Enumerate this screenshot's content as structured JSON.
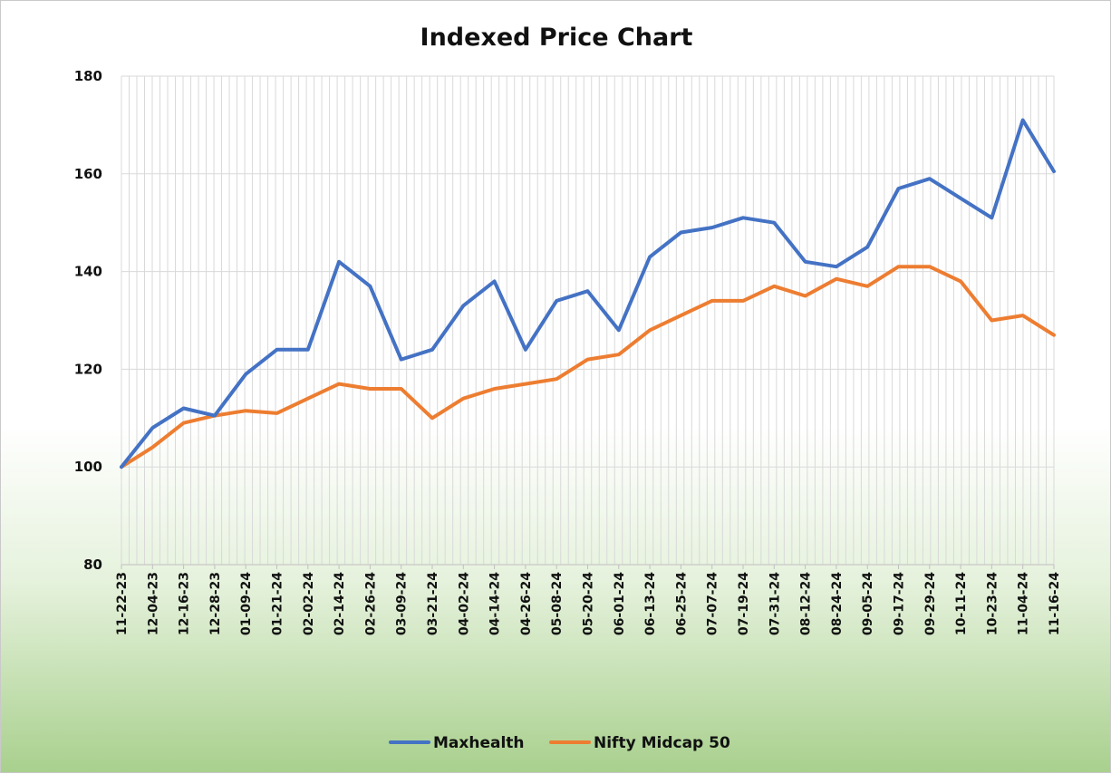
{
  "chart_data": {
    "type": "line",
    "title": "Indexed Price Chart",
    "xlabel": "",
    "ylabel": "",
    "ylim": [
      80,
      180
    ],
    "yticks": [
      80,
      100,
      120,
      140,
      160,
      180
    ],
    "grid": "vertical",
    "legend_position": "bottom",
    "categories": [
      "11-22-23",
      "12-04-23",
      "12-16-23",
      "12-28-23",
      "01-09-24",
      "01-21-24",
      "02-02-24",
      "02-14-24",
      "02-26-24",
      "03-09-24",
      "03-21-24",
      "04-02-24",
      "04-14-24",
      "04-26-24",
      "05-08-24",
      "05-20-24",
      "06-01-24",
      "06-13-24",
      "06-25-24",
      "07-07-24",
      "07-19-24",
      "07-31-24",
      "08-12-24",
      "08-24-24",
      "09-05-24",
      "09-17-24",
      "09-29-24",
      "10-11-24",
      "10-23-24",
      "11-04-24",
      "11-16-24"
    ],
    "series": [
      {
        "name": "Maxhealth",
        "color": "#4472c4",
        "values": [
          100,
          108,
          112,
          110.5,
          119,
          124,
          124,
          142,
          137,
          122,
          124,
          133,
          138,
          124,
          134,
          136,
          128,
          143,
          148,
          149,
          151,
          150,
          142,
          141,
          145,
          157,
          159,
          155,
          151,
          171,
          160.5
        ]
      },
      {
        "name": "Nifty Midcap 50",
        "color": "#ed7d31",
        "values": [
          100,
          104,
          109,
          110.5,
          111.5,
          111,
          114,
          117,
          116,
          116,
          110,
          114,
          116,
          117,
          118,
          122,
          123,
          128,
          131,
          134,
          134,
          137,
          135,
          138.5,
          137,
          141,
          141,
          138,
          130,
          131,
          127
        ]
      }
    ]
  }
}
